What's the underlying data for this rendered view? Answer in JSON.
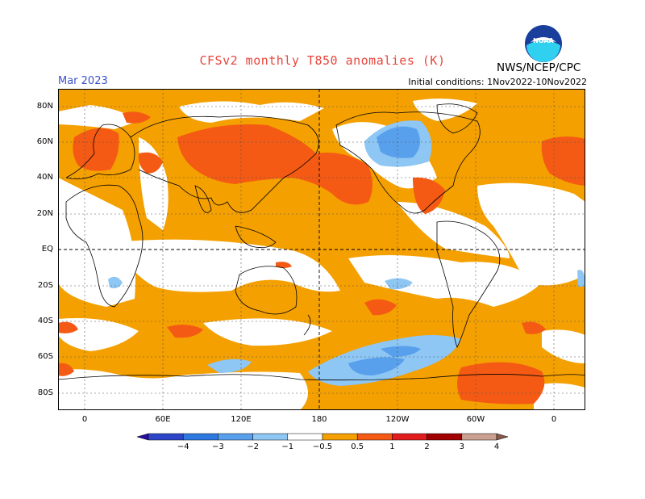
{
  "header": {
    "title": "CFSv2 monthly T850 anomalies (K)",
    "month": "Mar 2023",
    "initial_conditions": "Initial conditions: 1Nov2022-10Nov2022",
    "agency": "NWS/NCEP/CPC",
    "logo_text": "NOAA"
  },
  "axes": {
    "lat_labels": [
      "80N",
      "60N",
      "40N",
      "20N",
      "EQ",
      "20S",
      "40S",
      "60S",
      "80S"
    ],
    "lon_labels": [
      "0",
      "60E",
      "120E",
      "180",
      "120W",
      "60W",
      "0"
    ]
  },
  "colorbar": {
    "labels": [
      "-4",
      "-3",
      "-2",
      "-1",
      "-0.5",
      "0.5",
      "1",
      "2",
      "3",
      "4"
    ],
    "colors": [
      "#2a0c9e",
      "#2d46c8",
      "#2e79e0",
      "#58a0ec",
      "#8ec6f4",
      "#ffffff",
      "#f4a000",
      "#f45a14",
      "#e01c1c",
      "#a00000",
      "#caa090",
      "#8a5a48"
    ]
  }
}
